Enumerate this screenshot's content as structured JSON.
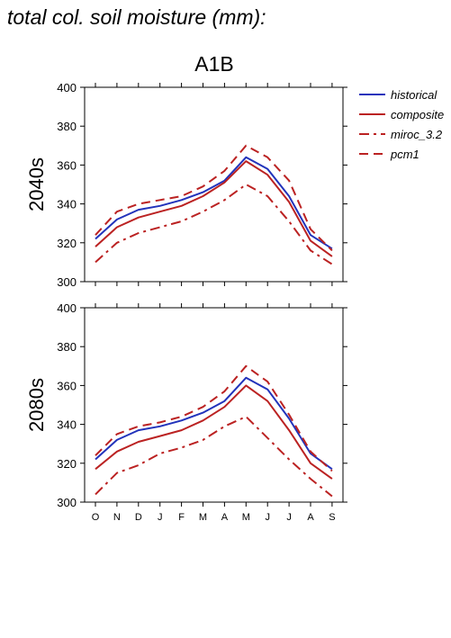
{
  "title": "total col. soil moisture (mm):",
  "scenario": "A1B",
  "chart_data": {
    "type": "line",
    "categories": [
      "O",
      "N",
      "D",
      "J",
      "F",
      "M",
      "A",
      "M",
      "J",
      "J",
      "A",
      "S"
    ],
    "ylim": [
      300,
      400
    ],
    "yticks": [
      300,
      320,
      340,
      360,
      380,
      400
    ],
    "grid": false,
    "legend": "right",
    "series_styles": [
      {
        "name": "historical",
        "color": "#2233bb",
        "dash": "solid"
      },
      {
        "name": "composite",
        "color": "#bb2222",
        "dash": "solid"
      },
      {
        "name": "miroc_3.2",
        "color": "#bb2222",
        "dash": "dashdot"
      },
      {
        "name": "pcm1",
        "color": "#bb2222",
        "dash": "dashed"
      }
    ],
    "panels": [
      {
        "label": "2040s",
        "series": [
          {
            "name": "historical",
            "values": [
              322,
              332,
              337,
              339,
              342,
              346,
              352,
              364,
              358,
              344,
              324,
              317
            ]
          },
          {
            "name": "composite",
            "values": [
              318,
              328,
              333,
              336,
              339,
              344,
              351,
              362,
              355,
              341,
              321,
              313
            ]
          },
          {
            "name": "miroc_3.2",
            "values": [
              310,
              320,
              325,
              328,
              331,
              336,
              342,
              350,
              344,
              331,
              316,
              309
            ]
          },
          {
            "name": "pcm1",
            "values": [
              324,
              336,
              340,
              342,
              344,
              349,
              357,
              370,
              364,
              352,
              327,
              316
            ]
          }
        ]
      },
      {
        "label": "2080s",
        "series": [
          {
            "name": "historical",
            "values": [
              322,
              332,
              337,
              339,
              342,
              346,
              352,
              364,
              358,
              343,
              325,
              317
            ]
          },
          {
            "name": "composite",
            "values": [
              317,
              326,
              331,
              334,
              337,
              342,
              349,
              360,
              352,
              337,
              320,
              312
            ]
          },
          {
            "name": "miroc_3.2",
            "values": [
              304,
              315,
              319,
              325,
              328,
              332,
              339,
              344,
              333,
              322,
              312,
              303
            ]
          },
          {
            "name": "pcm1",
            "values": [
              324,
              335,
              339,
              341,
              344,
              349,
              357,
              370,
              362,
              345,
              326,
              316
            ]
          }
        ]
      }
    ]
  }
}
